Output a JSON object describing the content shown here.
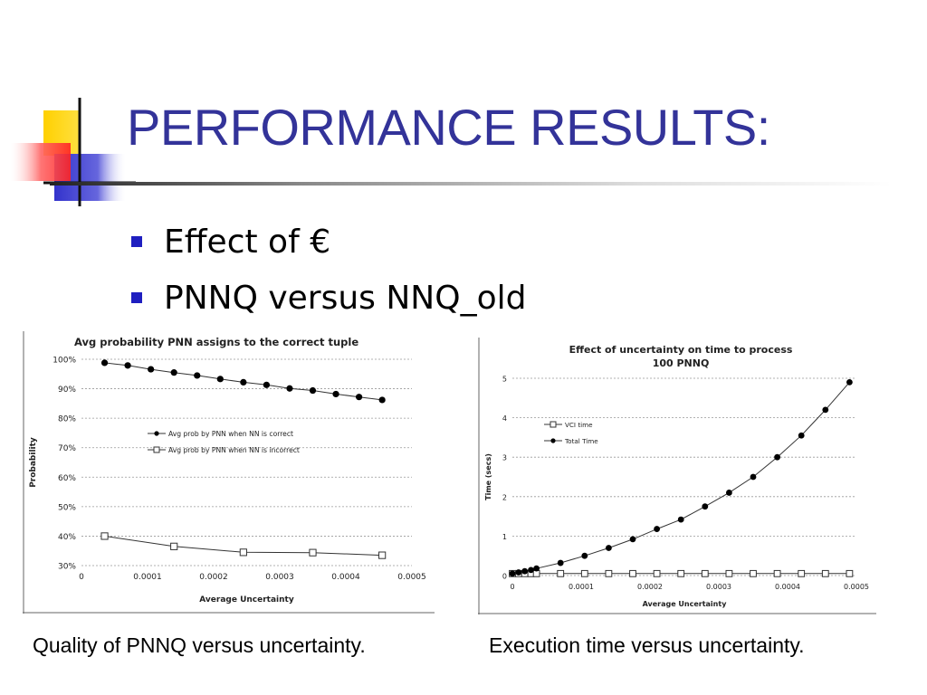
{
  "slide": {
    "title": "PERFORMANCE RESULTS:",
    "bullets": [
      "Effect of €",
      "PNNQ versus NNQ_old"
    ],
    "captions": [
      "Quality of PNNQ versus uncertainty.",
      "Execution time versus uncertainty."
    ],
    "colors": {
      "title": "#333399",
      "bullet": "#1f1fc0",
      "deco_yellow": "#ffd000",
      "deco_blue": "#3333cc",
      "deco_red": "#ff3333"
    }
  },
  "chart_data": [
    {
      "type": "line",
      "title": "Avg probability PNN assigns to the correct tuple",
      "xlabel": "Average Uncertainty",
      "ylabel": "Probability",
      "xlim": [
        0,
        0.0005
      ],
      "ylim": [
        30,
        100
      ],
      "x_ticks": [
        "0",
        "0.0001",
        "0.0002",
        "0.0003",
        "0.0004",
        "0.0005"
      ],
      "y_ticks": [
        "30%",
        "40%",
        "50%",
        "60%",
        "70%",
        "80%",
        "90%",
        "100%"
      ],
      "grid": "horizontal dashed",
      "legend_position": "center-right",
      "series": [
        {
          "name": "Avg prob by PNN when NN is correct",
          "marker": "filled-circle",
          "x": [
            3.5e-05,
            7e-05,
            0.000105,
            0.00014,
            0.000175,
            0.00021,
            0.000245,
            0.00028,
            0.000315,
            0.00035,
            0.000385,
            0.00042,
            0.000455
          ],
          "y": [
            98.8,
            97.9,
            96.6,
            95.5,
            94.5,
            93.3,
            92.2,
            91.3,
            90.1,
            89.4,
            88.2,
            87.2,
            86.2
          ]
        },
        {
          "name": "Avg prob by PNN when NN is incorrect",
          "marker": "open-square",
          "x": [
            3.5e-05,
            0.00014,
            0.000245,
            0.00035,
            0.000455
          ],
          "y": [
            40,
            36.5,
            34.5,
            34.4,
            33.5
          ]
        }
      ]
    },
    {
      "type": "line",
      "title": "Effect of uncertainty on time to process 100 PNNQ",
      "xlabel": "Average Uncertainty",
      "ylabel": "Time (secs)",
      "xlim": [
        0,
        0.0005
      ],
      "ylim": [
        0,
        5
      ],
      "x_ticks": [
        "0",
        "0.0001",
        "0.0002",
        "0.0003",
        "0.0004",
        "0.0005"
      ],
      "y_ticks": [
        "0",
        "1",
        "2",
        "3",
        "4",
        "5"
      ],
      "grid": "horizontal dashed",
      "legend_position": "top-left",
      "series": [
        {
          "name": "VCI time",
          "marker": "open-square",
          "x": [
            0,
            9e-06,
            1.8e-05,
            2.7e-05,
            3.5e-05,
            7e-05,
            0.000105,
            0.00014,
            0.000175,
            0.00021,
            0.000245,
            0.00028,
            0.000315,
            0.00035,
            0.000385,
            0.00042,
            0.000455,
            0.00049
          ],
          "y": [
            0.05,
            0.05,
            0.05,
            0.05,
            0.05,
            0.05,
            0.05,
            0.05,
            0.05,
            0.05,
            0.05,
            0.05,
            0.05,
            0.05,
            0.05,
            0.05,
            0.05,
            0.05
          ]
        },
        {
          "name": "Total Time",
          "marker": "filled-circle",
          "x": [
            0,
            9e-06,
            1.8e-05,
            2.7e-05,
            3.5e-05,
            7e-05,
            0.000105,
            0.00014,
            0.000175,
            0.00021,
            0.000245,
            0.00028,
            0.000315,
            0.00035,
            0.000385,
            0.00042,
            0.000455,
            0.00049
          ],
          "y": [
            0.05,
            0.08,
            0.11,
            0.14,
            0.18,
            0.32,
            0.5,
            0.7,
            0.92,
            1.18,
            1.42,
            1.75,
            2.1,
            2.5,
            3.0,
            3.55,
            4.2,
            4.9
          ]
        }
      ]
    }
  ]
}
